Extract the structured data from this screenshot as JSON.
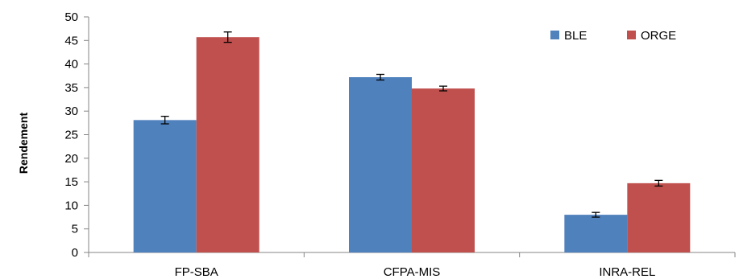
{
  "chart_data": {
    "type": "bar",
    "title": "",
    "xlabel": "",
    "ylabel": "Rendement",
    "ylim": [
      0,
      50
    ],
    "yticks": [
      0,
      5,
      10,
      15,
      20,
      25,
      30,
      35,
      40,
      45,
      50
    ],
    "grid": false,
    "legend_position": "top-right",
    "categories": [
      "FP-SBA",
      "CFPA-MIS",
      "INRA-REL"
    ],
    "series": [
      {
        "name": "BLE",
        "color": "#4F81BD",
        "values": [
          28.1,
          37.2,
          8.0
        ],
        "errors": [
          0.8,
          0.6,
          0.5
        ]
      },
      {
        "name": "ORGE",
        "color": "#C0504D",
        "values": [
          45.7,
          34.8,
          14.7
        ],
        "errors": [
          1.1,
          0.5,
          0.6
        ]
      }
    ]
  }
}
